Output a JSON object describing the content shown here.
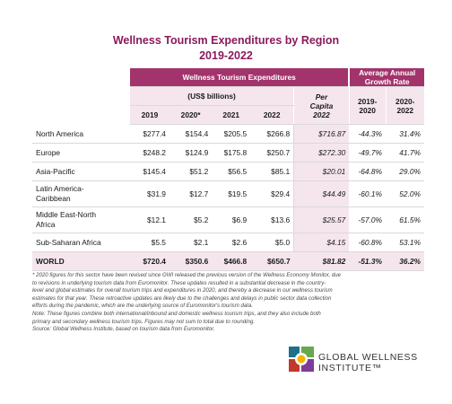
{
  "title": {
    "line1": "Wellness Tourism Expenditures by Region",
    "line2": "2019-2022"
  },
  "header": {
    "expenditures": "Wellness Tourism Expenditures",
    "growth_line1": "Average Annual",
    "growth_line2": "Growth Rate",
    "units": "(US$ billions)",
    "percap_line1": "Per",
    "percap_line2": "Capita",
    "percap_line3": "2022",
    "years": [
      "2019",
      "2020*",
      "2021",
      "2022"
    ],
    "growth1_line1": "2019-",
    "growth1_line2": "2020",
    "growth2_line1": "2020-",
    "growth2_line2": "2022"
  },
  "rows": [
    {
      "region": "North America",
      "v2019": "$277.4",
      "v2020": "$154.4",
      "v2021": "$205.5",
      "v2022": "$266.8",
      "percap": "$716.87",
      "g1": "-44.3%",
      "g2": "31.4%"
    },
    {
      "region": "Europe",
      "v2019": "$248.2",
      "v2020": "$124.9",
      "v2021": "$175.8",
      "v2022": "$250.7",
      "percap": "$272.30",
      "g1": "-49.7%",
      "g2": "41.7%"
    },
    {
      "region": "Asia-Pacific",
      "v2019": "$145.4",
      "v2020": "$51.2",
      "v2021": "$56.5",
      "v2022": "$85.1",
      "percap": "$20.01",
      "g1": "-64.8%",
      "g2": "29.0%"
    },
    {
      "region_line1": "Latin America-",
      "region_line2": "Caribbean",
      "v2019": "$31.9",
      "v2020": "$12.7",
      "v2021": "$19.5",
      "v2022": "$29.4",
      "percap": "$44.49",
      "g1": "-60.1%",
      "g2": "52.0%"
    },
    {
      "region_line1": "Middle East-North",
      "region_line2": "Africa",
      "v2019": "$12.1",
      "v2020": "$5.2",
      "v2021": "$6.9",
      "v2022": "$13.6",
      "percap": "$25.57",
      "g1": "-57.0%",
      "g2": "61.5%"
    },
    {
      "region": "Sub-Saharan Africa",
      "v2019": "$5.5",
      "v2020": "$2.1",
      "v2021": "$2.6",
      "v2022": "$5.0",
      "percap": "$4.15",
      "g1": "-60.8%",
      "g2": "53.1%"
    }
  ],
  "world": {
    "region": "WORLD",
    "v2019": "$720.4",
    "v2020": "$350.6",
    "v2021": "$466.8",
    "v2022": "$650.7",
    "percap": "$81.82",
    "g1": "-51.3%",
    "g2": "36.2%"
  },
  "notes": [
    "* 2020 figures for this sector have been revised since GWI released the previous version of the Wellness Economy Monitor, due",
    "to revisions in underlying tourism data from Euromonitor. These updates resulted in a substantial decrease in the country-",
    "level and global estimates for overall tourism trips and expenditures in 2020, and thereby a decrease in our wellness tourism",
    "estimates for that year. These retroactive updates are likely due to the challenges and delays in public sector data collection",
    "efforts during the pandemic, which are the underlying source of Euromonitor's tourism data.",
    "Note: These figures combine both international/inbound and domestic wellness tourism trips, and they also include both",
    "primary and secondary wellness tourism trips. Figures may not sum to total due to rounding.",
    "Source: Global Wellness Institute, based on tourism data from Euromonitor."
  ],
  "logo": {
    "line1": "GLOBAL WELLNESS",
    "line2": "INSTITUTE™"
  }
}
